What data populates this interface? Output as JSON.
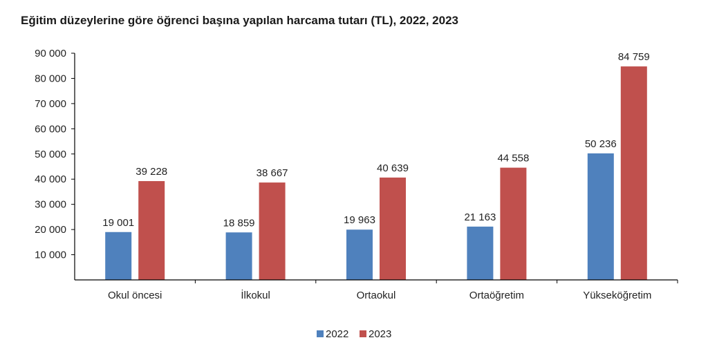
{
  "chart_data": {
    "type": "bar",
    "title": "Eğitim düzeylerine göre öğrenci başına yapılan harcama tutarı (TL), 2022, 2023",
    "categories": [
      "Okul öncesi",
      "İlkokul",
      "Ortaokul",
      "Ortaöğretim",
      "Yükseköğretim"
    ],
    "series": [
      {
        "name": "2022",
        "color": "#4f81bd",
        "values": [
          19001,
          18859,
          19963,
          21163,
          50236
        ]
      },
      {
        "name": "2023",
        "color": "#c0504d",
        "values": [
          39228,
          38667,
          40639,
          44558,
          84759
        ]
      }
    ],
    "value_labels": [
      [
        "19 001",
        "18 859",
        "19 963",
        "21 163",
        "50 236"
      ],
      [
        "39 228",
        "38 667",
        "40 639",
        "44 558",
        "84 759"
      ]
    ],
    "ylim": [
      0,
      90000
    ],
    "yticks": [
      10000,
      20000,
      30000,
      40000,
      50000,
      60000,
      70000,
      80000,
      90000
    ],
    "ytick_labels": [
      "10 000",
      "20 000",
      "30 000",
      "40 000",
      "50 000",
      "60 000",
      "70 000",
      "80 000",
      "90 000"
    ],
    "xlabel": "",
    "ylabel": "",
    "grid": false,
    "legend_position": "bottom"
  }
}
